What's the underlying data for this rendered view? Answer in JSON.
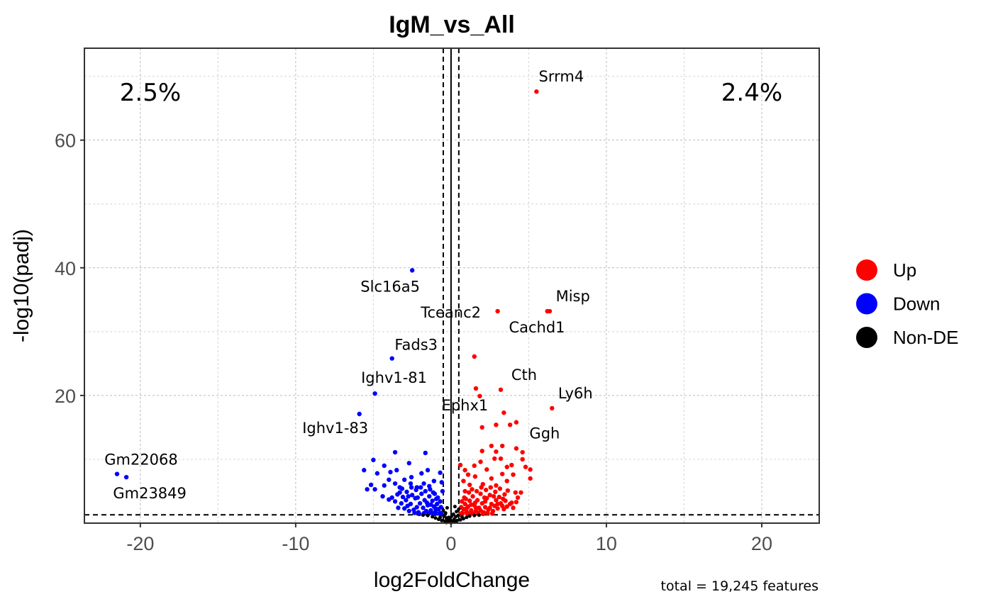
{
  "chart_data": {
    "type": "scatter",
    "title": "IgM_vs_All",
    "xlabel": "log2FoldChange",
    "ylabel": "-log10(padj)",
    "xlim": [
      -23.6,
      23.7
    ],
    "ylim": [
      0,
      74.4
    ],
    "x_ticks": [
      -20,
      -10,
      0,
      10,
      20
    ],
    "x_tick_labels": [
      "-20",
      "-10",
      "0",
      "10",
      "20"
    ],
    "y_ticks": [
      20,
      40,
      60
    ],
    "y_tick_labels": [
      "20",
      "40",
      "60"
    ],
    "grid": true,
    "thresholds": {
      "log2fc": 0.5,
      "neg_log10_padj": 1.3
    },
    "percent_down": "2.5%",
    "percent_up": "2.4%",
    "caption": "total = 19,245 features",
    "legend": {
      "placement": "right",
      "entries": [
        {
          "label": "Up",
          "color": "#ff0000"
        },
        {
          "label": "Down",
          "color": "#0000ff"
        },
        {
          "label": "Non-DE",
          "color": "#000000"
        }
      ]
    },
    "labeled_points": [
      {
        "gene": "Srrm4",
        "x": 5.5,
        "y": 67.6,
        "group": "Up"
      },
      {
        "gene": "Slc16a5",
        "x": -2.5,
        "y": 39.6,
        "group": "Down"
      },
      {
        "gene": "Tceanc2",
        "x": 3.0,
        "y": 33.2,
        "group": "Up"
      },
      {
        "gene": "Misp",
        "x": 6.2,
        "y": 33.2,
        "group": "Up"
      },
      {
        "gene": "Cachd1",
        "x": 6.35,
        "y": 33.2,
        "group": "Up"
      },
      {
        "gene": "Fads3",
        "x": -3.8,
        "y": 25.8,
        "group": "Down"
      },
      {
        "gene": "Ighv1-81",
        "x": -4.9,
        "y": 20.3,
        "group": "Down"
      },
      {
        "gene": "Ighv1-83",
        "x": -5.9,
        "y": 17.1,
        "group": "Down"
      },
      {
        "gene": "Cth",
        "x": 3.2,
        "y": 20.9,
        "group": "Up"
      },
      {
        "gene": "Ephx1",
        "x": 1.85,
        "y": 19.9,
        "group": "Up"
      },
      {
        "gene": "Ly6h",
        "x": 6.5,
        "y": 18.0,
        "group": "Up"
      },
      {
        "gene": "Ggh",
        "x": 4.2,
        "y": 15.8,
        "group": "Up"
      },
      {
        "gene": "Gm22068",
        "x": -21.5,
        "y": 7.7,
        "group": "Down"
      },
      {
        "gene": "Gm23849",
        "x": -20.9,
        "y": 7.2,
        "group": "Down"
      }
    ],
    "series": [
      {
        "name": "Up",
        "color": "#ff0000",
        "points": [
          [
            1.5,
            26.1
          ],
          [
            1.6,
            21.1
          ],
          [
            3.4,
            17.3
          ],
          [
            2.9,
            15.4
          ],
          [
            3.8,
            15.4
          ],
          [
            2.0,
            15.0
          ],
          [
            2.6,
            12.1
          ],
          [
            3.3,
            12.1
          ],
          [
            2.0,
            11.3
          ],
          [
            2.9,
            11.2
          ],
          [
            4.2,
            11.7
          ],
          [
            4.6,
            11.1
          ],
          [
            2.8,
            10.1
          ],
          [
            3.2,
            10.1
          ],
          [
            4.6,
            10.0
          ],
          [
            1.9,
            9.6
          ],
          [
            0.6,
            9.1
          ],
          [
            1.5,
            9.0
          ],
          [
            3.9,
            9.1
          ],
          [
            3.6,
            8.8
          ],
          [
            4.8,
            8.8
          ],
          [
            5.1,
            8.4
          ],
          [
            5.1,
            7.0
          ],
          [
            4.0,
            7.6
          ],
          [
            3.3,
            7.7
          ],
          [
            2.3,
            8.4
          ],
          [
            0.9,
            8.3
          ],
          [
            1.1,
            7.6
          ],
          [
            1.55,
            7.3
          ],
          [
            2.6,
            7.0
          ],
          [
            3.6,
            6.6
          ],
          [
            0.8,
            6.6
          ],
          [
            2.05,
            6.1
          ],
          [
            2.9,
            5.9
          ],
          [
            4.15,
            4.8
          ],
          [
            4.5,
            4.8
          ],
          [
            4.3,
            4.0
          ],
          [
            3.9,
            3.2
          ],
          [
            3.65,
            5.1
          ],
          [
            0.7,
            1.6
          ],
          [
            0.8,
            2.2
          ],
          [
            0.9,
            3.0
          ],
          [
            1.0,
            1.8
          ],
          [
            1.1,
            2.6
          ],
          [
            1.2,
            3.5
          ],
          [
            1.3,
            2.0
          ],
          [
            1.4,
            4.2
          ],
          [
            1.5,
            2.8
          ],
          [
            1.6,
            1.9
          ],
          [
            1.7,
            3.6
          ],
          [
            1.8,
            2.4
          ],
          [
            1.9,
            4.6
          ],
          [
            2.0,
            3.1
          ],
          [
            2.1,
            1.7
          ],
          [
            2.2,
            2.5
          ],
          [
            2.3,
            3.9
          ],
          [
            2.4,
            2.1
          ],
          [
            2.5,
            4.4
          ],
          [
            2.6,
            3.0
          ],
          [
            2.7,
            1.9
          ],
          [
            2.8,
            2.7
          ],
          [
            2.9,
            3.6
          ],
          [
            3.0,
            2.3
          ],
          [
            3.1,
            4.1
          ],
          [
            3.2,
            3.1
          ],
          [
            3.4,
            2.2
          ],
          [
            3.5,
            3.5
          ],
          [
            3.6,
            2.6
          ],
          [
            3.8,
            3.0
          ],
          [
            4.0,
            2.4
          ],
          [
            4.2,
            3.3
          ],
          [
            0.6,
            1.4
          ],
          [
            0.75,
            1.5
          ],
          [
            1.05,
            1.45
          ],
          [
            1.25,
            1.6
          ],
          [
            1.45,
            1.5
          ],
          [
            1.75,
            1.55
          ],
          [
            2.05,
            1.45
          ],
          [
            2.35,
            1.6
          ],
          [
            2.65,
            1.5
          ],
          [
            0.85,
            4.0
          ],
          [
            1.15,
            4.8
          ],
          [
            1.35,
            5.3
          ],
          [
            1.65,
            5.0
          ],
          [
            1.95,
            5.6
          ],
          [
            2.25,
            5.2
          ],
          [
            2.55,
            5.6
          ],
          [
            2.85,
            4.9
          ],
          [
            3.15,
            5.4
          ],
          [
            3.45,
            4.5
          ],
          [
            0.95,
            3.8
          ],
          [
            1.55,
            3.2
          ],
          [
            2.15,
            4.0
          ],
          [
            2.75,
            4.2
          ],
          [
            3.35,
            3.8
          ],
          [
            0.65,
            2.5
          ],
          [
            0.7,
            3.4
          ],
          [
            1.0,
            2.3
          ],
          [
            1.3,
            2.9
          ],
          [
            1.6,
            2.4
          ],
          [
            1.9,
            2.0
          ],
          [
            2.2,
            3.4
          ],
          [
            2.5,
            2.4
          ],
          [
            3.0,
            3.0
          ],
          [
            3.3,
            2.7
          ],
          [
            0.9,
            5.0
          ],
          [
            1.2,
            6.0
          ]
        ]
      },
      {
        "name": "Down",
        "color": "#0000ff",
        "points": [
          [
            -3.6,
            11.1
          ],
          [
            -1.65,
            11.0
          ],
          [
            -5.0,
            9.9
          ],
          [
            -5.6,
            8.3
          ],
          [
            -4.3,
            9.0
          ],
          [
            -4.75,
            7.8
          ],
          [
            -5.15,
            6.0
          ],
          [
            -5.4,
            5.3
          ],
          [
            -4.9,
            5.3
          ],
          [
            -4.3,
            5.9
          ],
          [
            -4.4,
            4.2
          ],
          [
            -2.7,
            9.4
          ],
          [
            -1.5,
            8.3
          ],
          [
            -0.7,
            7.9
          ],
          [
            -3.5,
            8.3
          ],
          [
            -3.9,
            8.0
          ],
          [
            -2.55,
            7.2
          ],
          [
            -1.9,
            7.8
          ],
          [
            -3.0,
            6.8
          ],
          [
            -3.6,
            6.2
          ],
          [
            -1.75,
            6.2
          ],
          [
            -2.2,
            5.6
          ],
          [
            -1.4,
            5.8
          ],
          [
            -0.55,
            5.0
          ],
          [
            -4.0,
            3.7
          ],
          [
            -3.3,
            4.8
          ],
          [
            -1.05,
            4.6
          ],
          [
            -0.7,
            1.6
          ],
          [
            -0.8,
            2.2
          ],
          [
            -0.9,
            3.0
          ],
          [
            -1.0,
            1.8
          ],
          [
            -1.1,
            2.6
          ],
          [
            -1.2,
            3.5
          ],
          [
            -1.3,
            2.0
          ],
          [
            -1.4,
            4.2
          ],
          [
            -1.5,
            2.8
          ],
          [
            -1.6,
            1.9
          ],
          [
            -1.7,
            3.6
          ],
          [
            -1.8,
            2.4
          ],
          [
            -1.9,
            4.6
          ],
          [
            -2.0,
            3.1
          ],
          [
            -2.1,
            1.7
          ],
          [
            -2.2,
            2.5
          ],
          [
            -2.3,
            3.9
          ],
          [
            -2.4,
            2.1
          ],
          [
            -2.5,
            4.4
          ],
          [
            -2.6,
            3.0
          ],
          [
            -2.7,
            1.9
          ],
          [
            -2.8,
            2.7
          ],
          [
            -2.9,
            3.6
          ],
          [
            -3.0,
            2.3
          ],
          [
            -3.1,
            4.1
          ],
          [
            -3.2,
            3.1
          ],
          [
            -3.4,
            2.4
          ],
          [
            -3.6,
            3.4
          ],
          [
            -3.8,
            4.0
          ],
          [
            -0.6,
            1.4
          ],
          [
            -0.75,
            1.5
          ],
          [
            -1.05,
            1.45
          ],
          [
            -1.25,
            1.6
          ],
          [
            -1.45,
            1.5
          ],
          [
            -1.75,
            1.55
          ],
          [
            -2.05,
            1.45
          ],
          [
            -2.35,
            1.6
          ],
          [
            -0.85,
            4.0
          ],
          [
            -1.15,
            4.8
          ],
          [
            -1.35,
            5.3
          ],
          [
            -1.65,
            5.0
          ],
          [
            -1.95,
            5.6
          ],
          [
            -2.25,
            5.2
          ],
          [
            -2.55,
            5.6
          ],
          [
            -2.85,
            4.9
          ],
          [
            -3.15,
            5.4
          ],
          [
            -3.45,
            4.5
          ],
          [
            -0.95,
            3.8
          ],
          [
            -1.55,
            3.2
          ],
          [
            -2.15,
            4.0
          ],
          [
            -2.75,
            4.2
          ],
          [
            -0.65,
            2.5
          ],
          [
            -0.7,
            3.4
          ],
          [
            -1.0,
            2.3
          ],
          [
            -1.3,
            2.9
          ],
          [
            -0.6,
            6.4
          ],
          [
            -1.1,
            6.6
          ],
          [
            -2.6,
            6.2
          ],
          [
            -3.3,
            5.6
          ],
          [
            -4.0,
            6.8
          ]
        ]
      },
      {
        "name": "Non-DE",
        "color": "#000000",
        "points": [
          [
            -0.4,
            0.3
          ],
          [
            -0.3,
            0.8
          ],
          [
            -0.2,
            0.5
          ],
          [
            -0.1,
            0.2
          ],
          [
            0,
            0.05
          ],
          [
            0.1,
            0.3
          ],
          [
            0.2,
            0.6
          ],
          [
            0.3,
            1.0
          ],
          [
            0.4,
            0.4
          ],
          [
            -0.45,
            1.1
          ],
          [
            0.45,
            1.2
          ],
          [
            -0.6,
            0.4
          ],
          [
            0.6,
            0.5
          ],
          [
            -0.8,
            0.6
          ],
          [
            0.8,
            0.7
          ],
          [
            -1.0,
            0.8
          ],
          [
            1.0,
            0.9
          ],
          [
            -1.2,
            1.0
          ],
          [
            1.2,
            1.1
          ],
          [
            -1.5,
            1.2
          ],
          [
            1.5,
            1.2
          ],
          [
            -0.35,
            1.6
          ],
          [
            0.35,
            1.8
          ],
          [
            -0.25,
            2.4
          ],
          [
            0.25,
            2.6
          ],
          [
            -0.15,
            0.9
          ],
          [
            0.15,
            1.4
          ],
          [
            -1.8,
            1.25
          ],
          [
            1.8,
            1.25
          ],
          [
            -0.05,
            0.6
          ],
          [
            0.05,
            1.1
          ],
          [
            -0.5,
            2.0
          ],
          [
            0.5,
            2.2
          ],
          [
            -0.3,
            0.1
          ],
          [
            0.3,
            0.15
          ],
          [
            -0.7,
            0.9
          ],
          [
            0.7,
            1.0
          ]
        ]
      }
    ]
  }
}
